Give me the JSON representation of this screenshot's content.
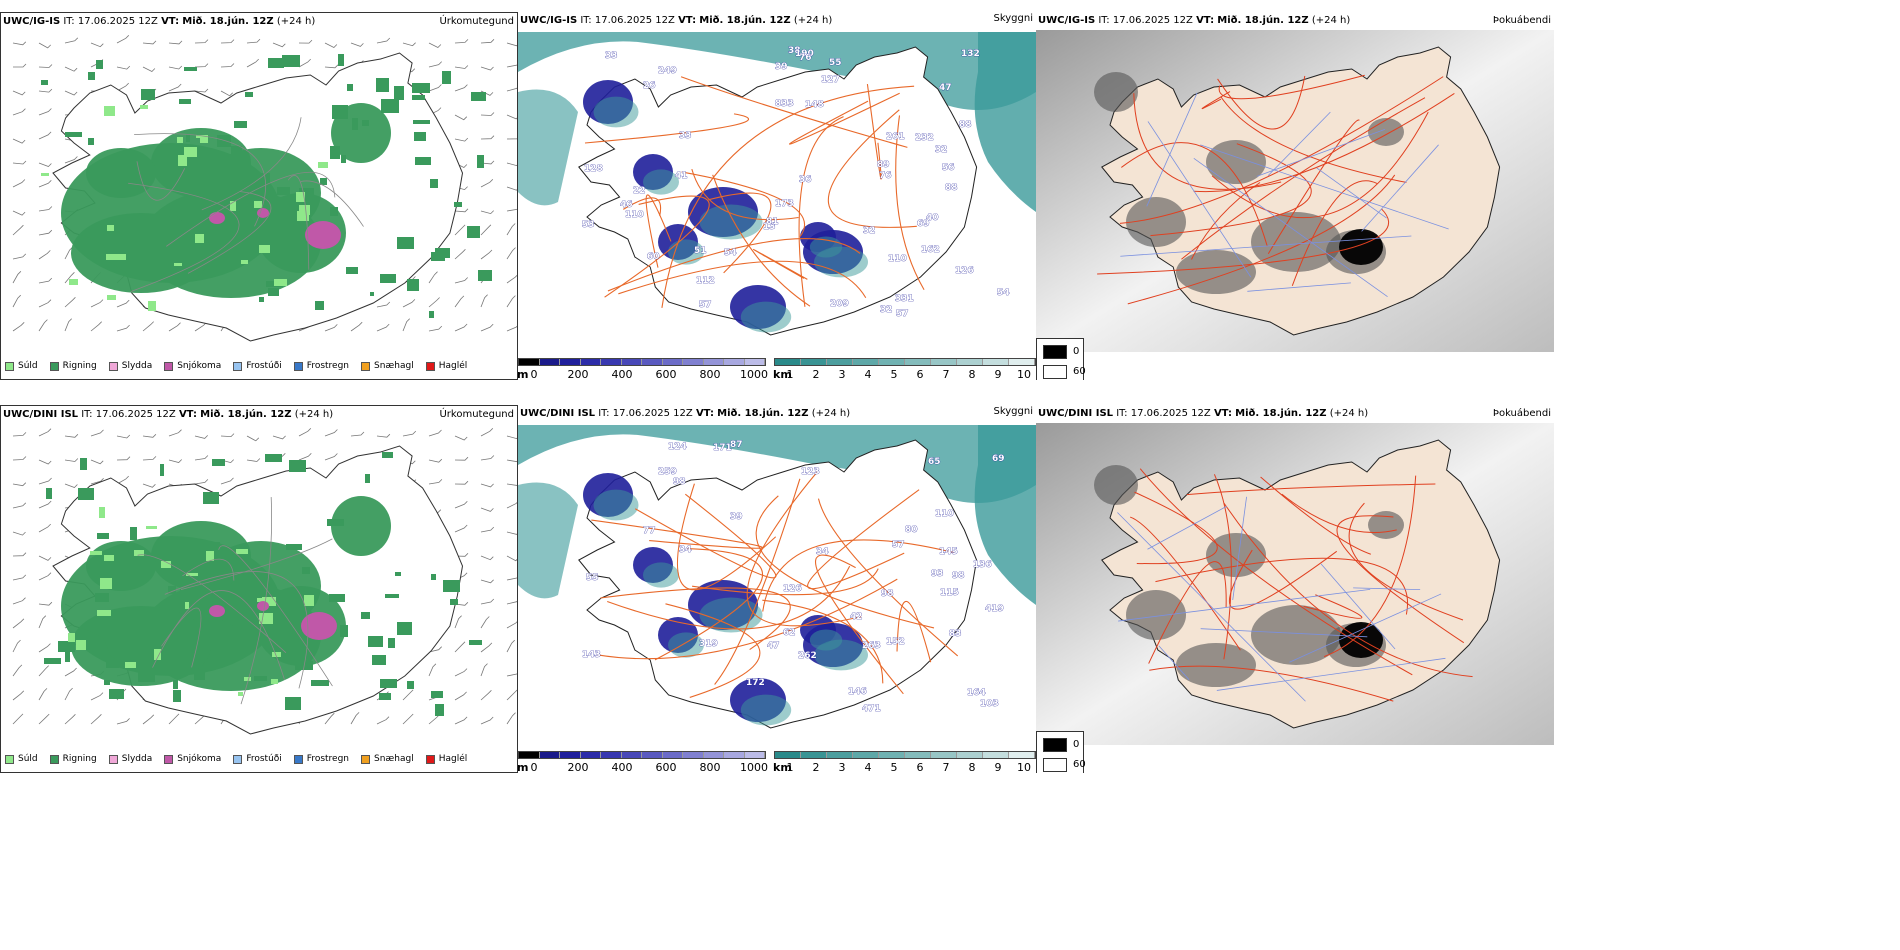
{
  "colors": {
    "sea_haze": "#3b9a9a",
    "land": "#f4e4d4",
    "road": "#e8692a",
    "river": "#7a90e0",
    "rain": "#3a9a5c",
    "drizzle": "#8fe88a",
    "snow": "#c058a8",
    "ceiling": "#1f1f9a"
  },
  "rows": [
    {
      "model": "UWC/IG-IS",
      "precip": {
        "title_it": "IT: 17.06.2025 12Z",
        "title_vt_label": "VT:",
        "title_vt": "Mið. 18.jún. 12Z",
        "title_lead": "(+24 h)",
        "label": "Úrkomutegund"
      },
      "ceiling": {
        "title_it": "IT: 17.06.2025 12Z",
        "title_vt_label": "VT:",
        "title_vt": "Mið. 18.jún. 12Z",
        "title_lead": "(+24 h)",
        "label": "Skyggni",
        "values": [
          "833",
          "331",
          "54",
          "162",
          "173",
          "232",
          "209",
          "261",
          "127",
          "26",
          "88",
          "128",
          "69",
          "41",
          "13",
          "126",
          "22",
          "249",
          "57",
          "132",
          "55",
          "76",
          "88",
          "54",
          "110",
          "81",
          "32",
          "51",
          "56",
          "46",
          "148",
          "38",
          "39",
          "33",
          "32",
          "60",
          "89",
          "110",
          "190",
          "112",
          "53",
          "47",
          "57",
          "40",
          "36",
          "33",
          "76",
          "32"
        ]
      },
      "fog": {
        "title_it": "IT: 17.06.2025 12Z",
        "title_vt_label": "VT:",
        "title_vt": "Mið. 18.jún. 12Z",
        "title_lead": "(+24 h)",
        "label": "Þokuábendi"
      }
    },
    {
      "model": "UWC/DINI ISL",
      "precip": {
        "title_it": "IT: 17.06.2025 12Z",
        "title_vt_label": "VT:",
        "title_vt": "Mið. 18.jún. 12Z",
        "title_lead": "(+24 h)",
        "label": "Úrkomutegund"
      },
      "ceiling": {
        "title_it": "IT: 17.06.2025 12Z",
        "title_vt_label": "VT:",
        "title_vt": "Mið. 18.jún. 12Z",
        "title_lead": "(+24 h)",
        "label": "Skyggni",
        "values": [
          "263",
          "98",
          "171",
          "259",
          "471",
          "123",
          "87",
          "152",
          "103",
          "262",
          "98",
          "164",
          "143",
          "126",
          "80",
          "77",
          "110",
          "93",
          "319",
          "42",
          "47",
          "57",
          "124",
          "136",
          "115",
          "83",
          "146",
          "419",
          "69",
          "98",
          "172",
          "145",
          "55",
          "62",
          "65",
          "39",
          "34",
          "34"
        ]
      },
      "fog": {
        "title_it": "IT: 17.06.2025 12Z",
        "title_vt_label": "VT:",
        "title_vt": "Mið. 18.jún. 12Z",
        "title_lead": "(+24 h)",
        "label": "Þokuábendi"
      }
    }
  ],
  "precip_legend": [
    {
      "label": "Súld",
      "color": "#8fe88a"
    },
    {
      "label": "Rigning",
      "color": "#3a9a5c"
    },
    {
      "label": "Slydda",
      "color": "#f0a8d8"
    },
    {
      "label": "Snjókoma",
      "color": "#c058a8"
    },
    {
      "label": "Frostúði",
      "color": "#98c4f0"
    },
    {
      "label": "Frostregn",
      "color": "#3878c8"
    },
    {
      "label": "Snæhagl",
      "color": "#f0a020"
    },
    {
      "label": "Haglél",
      "color": "#e01818"
    }
  ],
  "ceiling_bar": {
    "unit": "m",
    "ticks": [
      "0",
      "200",
      "400",
      "600",
      "800",
      "1000"
    ],
    "colors": [
      "#000000",
      "#1a1a8a",
      "#20209c",
      "#2c2ca8",
      "#3838b0",
      "#4848b8",
      "#5a5ac0",
      "#6c6cc8",
      "#8080d0",
      "#9494d8",
      "#a8a8e0",
      "#bcbce8"
    ]
  },
  "visibility_bar": {
    "unit": "km",
    "ticks": [
      "1",
      "2",
      "3",
      "4",
      "5",
      "6",
      "7",
      "8",
      "9",
      "10"
    ],
    "colors": [
      "#2a8a8a",
      "#3a9494",
      "#4c9e9e",
      "#5ea8a8",
      "#70b2b2",
      "#84bcbc",
      "#98c6c6",
      "#acd0d0",
      "#c4dede",
      "#e0eeee"
    ]
  },
  "fog_legend": {
    "values": [
      "0",
      "60"
    ],
    "colors": [
      "#000000",
      "#ffffff"
    ]
  }
}
